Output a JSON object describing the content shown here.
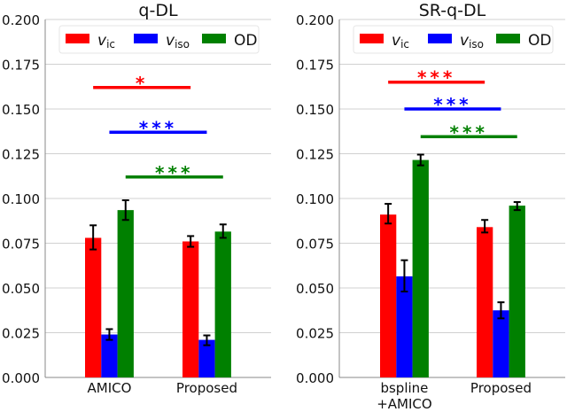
{
  "chart_data": [
    {
      "type": "bar",
      "title": "q-DL",
      "categories": [
        "AMICO",
        "Proposed"
      ],
      "ylim": [
        0,
        0.2
      ],
      "yticks": [
        "0.000",
        "0.025",
        "0.050",
        "0.075",
        "0.100",
        "0.125",
        "0.150",
        "0.175",
        "0.200"
      ],
      "grid": true,
      "legend": "top",
      "series": [
        {
          "name": "v_ic",
          "label_main": "v",
          "label_sub": "ic",
          "color": "#ff0000",
          "values": [
            0.078,
            0.076
          ],
          "err_low": [
            0.0715,
            0.073
          ],
          "err_high": [
            0.085,
            0.079
          ]
        },
        {
          "name": "v_iso",
          "label_main": "v",
          "label_sub": "iso",
          "color": "#0000ff",
          "values": [
            0.024,
            0.021
          ],
          "err_low": [
            0.021,
            0.018
          ],
          "err_high": [
            0.027,
            0.0235
          ]
        },
        {
          "name": "OD",
          "label_main": "OD",
          "label_sub": "",
          "color": "#008000",
          "values": [
            0.0935,
            0.0815
          ],
          "err_low": [
            0.088,
            0.078
          ],
          "err_high": [
            0.099,
            0.0855
          ]
        }
      ],
      "significance": [
        {
          "series": 0,
          "y": 0.162,
          "stars": "*"
        },
        {
          "series": 1,
          "y": 0.137,
          "stars": "***"
        },
        {
          "series": 2,
          "y": 0.112,
          "stars": "***"
        }
      ]
    },
    {
      "type": "bar",
      "title": "SR-q-DL",
      "categories": [
        "bspline\n+AMICO",
        "Proposed"
      ],
      "ylim": [
        0,
        0.2
      ],
      "yticks": [
        "0.000",
        "0.025",
        "0.050",
        "0.075",
        "0.100",
        "0.125",
        "0.150",
        "0.175",
        "0.200"
      ],
      "grid": true,
      "legend": "top",
      "series": [
        {
          "name": "v_ic",
          "label_main": "v",
          "label_sub": "ic",
          "color": "#ff0000",
          "values": [
            0.091,
            0.084
          ],
          "err_low": [
            0.086,
            0.081
          ],
          "err_high": [
            0.097,
            0.088
          ]
        },
        {
          "name": "v_iso",
          "label_main": "v",
          "label_sub": "iso",
          "color": "#0000ff",
          "values": [
            0.0565,
            0.0375
          ],
          "err_low": [
            0.048,
            0.033
          ],
          "err_high": [
            0.0655,
            0.042
          ]
        },
        {
          "name": "OD",
          "label_main": "OD",
          "label_sub": "",
          "color": "#008000",
          "values": [
            0.1215,
            0.096
          ],
          "err_low": [
            0.1185,
            0.0935
          ],
          "err_high": [
            0.1245,
            0.098
          ]
        }
      ],
      "significance": [
        {
          "series": 0,
          "y": 0.165,
          "stars": "***"
        },
        {
          "series": 1,
          "y": 0.15,
          "stars": "***"
        },
        {
          "series": 2,
          "y": 0.1345,
          "stars": "***"
        }
      ]
    }
  ]
}
